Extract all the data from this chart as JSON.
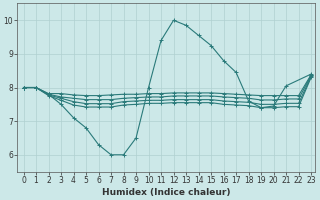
{
  "xlabel": "Humidex (Indice chaleur)",
  "ylabel": "",
  "xlim": [
    -0.5,
    23.3
  ],
  "ylim": [
    5.5,
    10.5
  ],
  "yticks": [
    6,
    7,
    8,
    9,
    10
  ],
  "xticks": [
    0,
    1,
    2,
    3,
    4,
    5,
    6,
    7,
    8,
    9,
    10,
    11,
    12,
    13,
    14,
    15,
    16,
    17,
    18,
    19,
    20,
    21,
    22,
    23
  ],
  "bg_color": "#cce8e8",
  "grid_color": "#b0d0d0",
  "line_color": "#2a7a7a",
  "line_width": 0.8,
  "marker": "+",
  "marker_size": 3,
  "marker_edge_width": 0.7,
  "curves": [
    {
      "x": [
        0,
        1,
        2,
        3,
        4,
        5,
        6,
        7,
        8,
        9,
        10,
        11,
        12,
        13,
        14,
        15,
        16,
        17,
        18,
        19,
        20,
        21,
        23
      ],
      "y": [
        8.0,
        8.0,
        7.8,
        7.5,
        7.1,
        6.8,
        6.3,
        6.0,
        6.0,
        6.5,
        8.0,
        9.4,
        10.0,
        9.85,
        9.55,
        9.25,
        8.8,
        8.45,
        7.6,
        7.4,
        7.45,
        8.05,
        8.4
      ]
    },
    {
      "x": [
        0,
        1,
        2,
        3,
        4,
        5,
        6,
        7,
        8,
        9,
        10,
        11,
        12,
        13,
        14,
        15,
        16,
        17,
        18,
        19,
        20,
        21,
        22,
        23
      ],
      "y": [
        8.0,
        8.0,
        7.82,
        7.82,
        7.78,
        7.76,
        7.76,
        7.78,
        7.8,
        7.8,
        7.82,
        7.82,
        7.84,
        7.84,
        7.84,
        7.84,
        7.82,
        7.8,
        7.78,
        7.76,
        7.76,
        7.76,
        7.76,
        8.38
      ]
    },
    {
      "x": [
        0,
        1,
        2,
        3,
        4,
        5,
        6,
        7,
        8,
        9,
        10,
        11,
        12,
        13,
        14,
        15,
        16,
        17,
        18,
        19,
        20,
        21,
        22,
        23
      ],
      "y": [
        8.0,
        8.0,
        7.8,
        7.72,
        7.68,
        7.64,
        7.64,
        7.64,
        7.68,
        7.7,
        7.72,
        7.72,
        7.75,
        7.75,
        7.75,
        7.75,
        7.72,
        7.7,
        7.68,
        7.63,
        7.63,
        7.66,
        7.66,
        8.36
      ]
    },
    {
      "x": [
        0,
        1,
        2,
        3,
        4,
        5,
        6,
        7,
        8,
        9,
        10,
        11,
        12,
        13,
        14,
        15,
        16,
        17,
        18,
        19,
        20,
        21,
        22,
        23
      ],
      "y": [
        8.0,
        8.0,
        7.78,
        7.68,
        7.58,
        7.52,
        7.52,
        7.52,
        7.58,
        7.6,
        7.62,
        7.62,
        7.64,
        7.64,
        7.64,
        7.64,
        7.6,
        7.58,
        7.56,
        7.5,
        7.5,
        7.53,
        7.53,
        8.33
      ]
    },
    {
      "x": [
        0,
        1,
        2,
        3,
        4,
        5,
        6,
        7,
        8,
        9,
        10,
        11,
        12,
        13,
        14,
        15,
        16,
        17,
        18,
        19,
        20,
        21,
        22,
        23
      ],
      "y": [
        8.0,
        8.0,
        7.76,
        7.62,
        7.48,
        7.42,
        7.42,
        7.42,
        7.48,
        7.5,
        7.53,
        7.53,
        7.55,
        7.55,
        7.55,
        7.55,
        7.5,
        7.48,
        7.46,
        7.4,
        7.4,
        7.43,
        7.43,
        8.3
      ]
    }
  ]
}
